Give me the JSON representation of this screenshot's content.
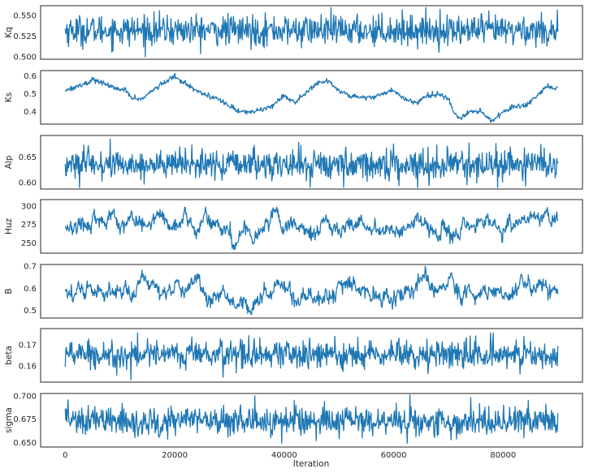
{
  "figure": {
    "xlabel": "Iteration",
    "line_color": "#1f77b4",
    "frame_color": "#262626",
    "background": "#ffffff"
  },
  "chart_data": [
    {
      "type": "line",
      "name": "Kq",
      "ylabel": "Kq",
      "xlim": [
        -4500,
        94500
      ],
      "ylim": [
        0.497,
        0.562
      ],
      "yticks": [
        0.5,
        0.525,
        0.55
      ],
      "ytick_labels": [
        "0.500",
        "0.525",
        "0.550"
      ],
      "xticks": [
        0,
        20000,
        40000,
        60000,
        80000
      ],
      "xtick_labels": [],
      "n_iterations": 90000,
      "mean": 0.532,
      "range": [
        0.5,
        0.56
      ],
      "behavior": "white-noise",
      "grid": false
    },
    {
      "type": "line",
      "name": "Ks",
      "ylabel": "Ks",
      "xlim": [
        -4500,
        94500
      ],
      "ylim": [
        0.33,
        0.63
      ],
      "yticks": [
        0.4,
        0.5,
        0.6
      ],
      "ytick_labels": [
        "0.4",
        "0.5",
        "0.6"
      ],
      "xticks": [
        0,
        20000,
        40000,
        60000,
        80000
      ],
      "xtick_labels": [],
      "n_iterations": 90000,
      "trend": [
        [
          0,
          0.52
        ],
        [
          2000,
          0.54
        ],
        [
          4000,
          0.56
        ],
        [
          5000,
          0.58
        ],
        [
          7000,
          0.56
        ],
        [
          9000,
          0.53
        ],
        [
          11000,
          0.52
        ],
        [
          12000,
          0.48
        ],
        [
          14000,
          0.47
        ],
        [
          16000,
          0.52
        ],
        [
          18000,
          0.56
        ],
        [
          19000,
          0.58
        ],
        [
          20000,
          0.6
        ],
        [
          21000,
          0.57
        ],
        [
          22000,
          0.56
        ],
        [
          24000,
          0.52
        ],
        [
          26000,
          0.49
        ],
        [
          28000,
          0.47
        ],
        [
          30000,
          0.43
        ],
        [
          32000,
          0.4
        ],
        [
          34000,
          0.4
        ],
        [
          36000,
          0.41
        ],
        [
          38000,
          0.44
        ],
        [
          40000,
          0.49
        ],
        [
          42000,
          0.45
        ],
        [
          44000,
          0.51
        ],
        [
          46000,
          0.56
        ],
        [
          48000,
          0.57
        ],
        [
          50000,
          0.52
        ],
        [
          52000,
          0.49
        ],
        [
          54000,
          0.48
        ],
        [
          56000,
          0.48
        ],
        [
          58000,
          0.5
        ],
        [
          60000,
          0.52
        ],
        [
          62000,
          0.47
        ],
        [
          64000,
          0.45
        ],
        [
          66000,
          0.49
        ],
        [
          68000,
          0.5
        ],
        [
          70000,
          0.47
        ],
        [
          71000,
          0.4
        ],
        [
          72000,
          0.36
        ],
        [
          74000,
          0.4
        ],
        [
          76000,
          0.4
        ],
        [
          77000,
          0.37
        ],
        [
          78000,
          0.35
        ],
        [
          80000,
          0.4
        ],
        [
          82000,
          0.43
        ],
        [
          84000,
          0.43
        ],
        [
          85000,
          0.45
        ],
        [
          87000,
          0.51
        ],
        [
          88000,
          0.54
        ],
        [
          90000,
          0.53
        ]
      ],
      "noise": 0.007,
      "behavior": "random-walk",
      "grid": false
    },
    {
      "type": "line",
      "name": "Alp",
      "ylabel": "Alp",
      "xlim": [
        -4500,
        94500
      ],
      "ylim": [
        0.587,
        0.692
      ],
      "yticks": [
        0.6,
        0.65
      ],
      "ytick_labels": [
        "0.60",
        "0.65"
      ],
      "xticks": [
        0,
        20000,
        40000,
        60000,
        80000
      ],
      "xtick_labels": [],
      "n_iterations": 90000,
      "mean": 0.635,
      "range": [
        0.59,
        0.685
      ],
      "behavior": "white-noise",
      "grid": false
    },
    {
      "type": "line",
      "name": "Huz",
      "ylabel": "Huz",
      "xlim": [
        -4500,
        94500
      ],
      "ylim": [
        236,
        309
      ],
      "yticks": [
        250,
        275,
        300
      ],
      "ytick_labels": [
        "250",
        "275",
        "300"
      ],
      "xticks": [
        0,
        20000,
        40000,
        60000,
        80000
      ],
      "xtick_labels": [],
      "n_iterations": 90000,
      "mean": 272,
      "range": [
        241,
        306
      ],
      "behavior": "autocorrelated",
      "grid": false
    },
    {
      "type": "line",
      "name": "B",
      "ylabel": "B",
      "xlim": [
        -4500,
        94500
      ],
      "ylim": [
        0.465,
        0.708
      ],
      "yticks": [
        0.5,
        0.6,
        0.7
      ],
      "ytick_labels": [
        "0.5",
        "0.6",
        "0.7"
      ],
      "xticks": [
        0,
        20000,
        40000,
        60000,
        80000
      ],
      "xtick_labels": [],
      "n_iterations": 90000,
      "mean": 0.585,
      "range": [
        0.47,
        0.7
      ],
      "behavior": "autocorrelated",
      "grid": false
    },
    {
      "type": "line",
      "name": "beta",
      "ylabel": "beta",
      "xlim": [
        -4500,
        94500
      ],
      "ylim": [
        0.1525,
        0.1775
      ],
      "yticks": [
        0.16,
        0.17
      ],
      "ytick_labels": [
        "0.16",
        "0.17"
      ],
      "xticks": [
        0,
        20000,
        40000,
        60000,
        80000
      ],
      "xtick_labels": [],
      "n_iterations": 90000,
      "mean": 0.1655,
      "range": [
        0.1535,
        0.1755
      ],
      "behavior": "white-noise",
      "grid": false
    },
    {
      "type": "line",
      "name": "sigma",
      "ylabel": "sigma",
      "xlim": [
        -4500,
        94500
      ],
      "ylim": [
        0.645,
        0.7025
      ],
      "yticks": [
        0.65,
        0.675,
        0.7
      ],
      "ytick_labels": [
        "0.650",
        "0.675",
        "0.700"
      ],
      "xticks": [
        0,
        20000,
        40000,
        60000,
        80000
      ],
      "xtick_labels": [
        "0",
        "20000",
        "40000",
        "60000",
        "80000"
      ],
      "n_iterations": 90000,
      "mean": 0.673,
      "range": [
        0.649,
        0.701
      ],
      "behavior": "white-noise",
      "grid": false
    }
  ]
}
